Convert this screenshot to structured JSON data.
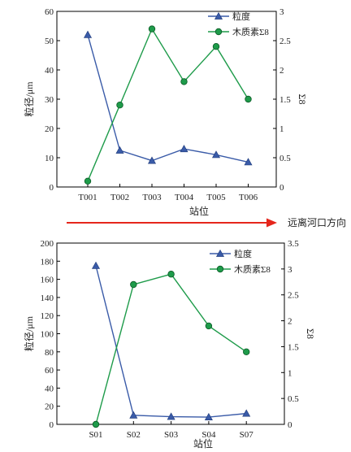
{
  "chart_data": [
    {
      "type": "line",
      "categories": [
        "T001",
        "T002",
        "T003",
        "T004",
        "T005",
        "T006"
      ],
      "xlabel": "站位",
      "ylabel": "粒径/μm",
      "ylabel_right": "Σ8",
      "ylim": [
        0,
        60
      ],
      "yticks": [
        0,
        10,
        20,
        30,
        40,
        50,
        60
      ],
      "ylim_right": [
        0,
        3
      ],
      "yticks_right": [
        "0",
        "0.5",
        "1",
        "1.5",
        "2",
        "2.5",
        "3"
      ],
      "legend_position": "top-right",
      "series": [
        {
          "name": "粒度",
          "axis": "left",
          "marker": "triangle",
          "color": "#3a5ba8",
          "values": [
            52,
            12.5,
            9,
            13,
            11,
            8.5
          ]
        },
        {
          "name": "木质素Σ8",
          "axis": "right",
          "marker": "circle",
          "color": "#1e9b4a",
          "values": [
            0.1,
            1.4,
            2.7,
            1.8,
            2.4,
            1.5
          ]
        }
      ]
    },
    {
      "type": "line",
      "categories": [
        "S01",
        "S02",
        "S03",
        "S04",
        "S07"
      ],
      "xlabel": "站位",
      "ylabel": "粒径/μm",
      "ylabel_right": "Σ8",
      "ylim": [
        0,
        200
      ],
      "yticks": [
        0,
        20,
        40,
        60,
        80,
        100,
        120,
        140,
        160,
        180,
        200
      ],
      "ylim_right": [
        0,
        3.5
      ],
      "yticks_right": [
        "0",
        "0.5",
        "1",
        "1.5",
        "2",
        "2.5",
        "3",
        "3.5"
      ],
      "legend_position": "top-right",
      "series": [
        {
          "name": "粒度",
          "axis": "left",
          "marker": "triangle",
          "color": "#3a5ba8",
          "values": [
            175,
            10,
            8.5,
            8,
            12
          ]
        },
        {
          "name": "木质素Σ8",
          "axis": "right",
          "marker": "circle",
          "color": "#1e9b4a",
          "values": [
            0,
            2.7,
            2.9,
            1.9,
            1.4
          ]
        }
      ]
    }
  ],
  "arrow": {
    "label": "远离河口方向",
    "color": "#e5261c"
  }
}
